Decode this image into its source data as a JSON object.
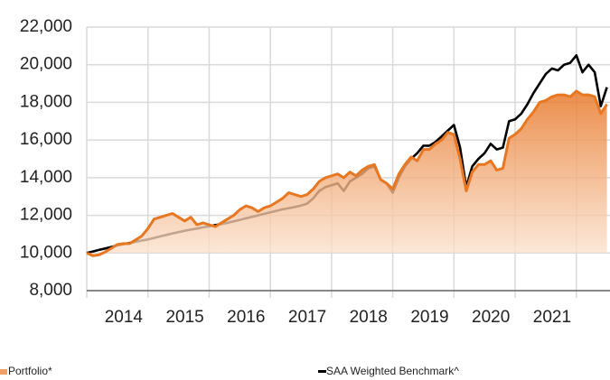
{
  "chart_data": {
    "type": "line",
    "x": [
      2014.0,
      2014.1,
      2014.2,
      2014.3,
      2014.4,
      2014.5,
      2014.6,
      2014.7,
      2014.8,
      2014.9,
      2015.0,
      2015.1,
      2015.2,
      2015.3,
      2015.4,
      2015.5,
      2015.6,
      2015.7,
      2015.8,
      2015.9,
      2016.0,
      2016.1,
      2016.2,
      2016.3,
      2016.4,
      2016.5,
      2016.6,
      2016.7,
      2016.8,
      2016.9,
      2017.0,
      2017.1,
      2017.2,
      2017.3,
      2017.4,
      2017.5,
      2017.6,
      2017.7,
      2017.8,
      2017.9,
      2018.0,
      2018.1,
      2018.2,
      2018.3,
      2018.4,
      2018.5,
      2018.6,
      2018.7,
      2018.8,
      2018.9,
      2019.0,
      2019.1,
      2019.2,
      2019.3,
      2019.4,
      2019.5,
      2019.6,
      2019.7,
      2019.8,
      2019.9,
      2020.0,
      2020.1,
      2020.2,
      2020.3,
      2020.4,
      2020.5,
      2020.6,
      2020.7,
      2020.8,
      2020.9,
      2021.0,
      2021.1,
      2021.2,
      2021.3,
      2021.4,
      2021.5,
      2021.6,
      2021.7,
      2021.8,
      2021.9,
      2022.0,
      2022.1,
      2022.2,
      2022.3,
      2022.4,
      2022.5
    ],
    "series": [
      {
        "name": "Portfolio*",
        "color": "#e87722",
        "area": true,
        "values": [
          10000,
          9850,
          9900,
          10050,
          10250,
          10450,
          10500,
          10500,
          10700,
          10900,
          11300,
          11800,
          11900,
          12000,
          12100,
          11900,
          11700,
          11900,
          11500,
          11600,
          11500,
          11400,
          11600,
          11800,
          12000,
          12300,
          12500,
          12400,
          12200,
          12400,
          12500,
          12700,
          12900,
          13200,
          13100,
          13000,
          13100,
          13400,
          13800,
          14000,
          14100,
          14200,
          14000,
          14300,
          14100,
          14400,
          14600,
          14700,
          13900,
          13700,
          13400,
          14200,
          14700,
          15100,
          14900,
          15500,
          15500,
          15800,
          16000,
          16400,
          16300,
          15000,
          13300,
          14300,
          14700,
          14700,
          14900,
          14400,
          14500,
          16100,
          16300,
          16600,
          17100,
          17500,
          18000,
          18100,
          18300,
          18400,
          18400,
          18300,
          18600,
          18400,
          18400,
          18300,
          17400,
          17900
        ]
      },
      {
        "name": "SAA Weighted Benchmark^",
        "color": "#000000",
        "area": false,
        "values": [
          10000,
          10080,
          10160,
          10240,
          10320,
          10400,
          10460,
          10530,
          10600,
          10660,
          10720,
          10800,
          10880,
          10960,
          11040,
          11110,
          11180,
          11240,
          11300,
          11360,
          11420,
          11480,
          11540,
          11600,
          11680,
          11760,
          11840,
          11920,
          12000,
          12080,
          12160,
          12240,
          12320,
          12380,
          12440,
          12520,
          12620,
          12900,
          13300,
          13500,
          13600,
          13700,
          13300,
          13800,
          14000,
          14200,
          14500,
          14600,
          13900,
          13700,
          13200,
          14000,
          14600,
          15000,
          15300,
          15700,
          15700,
          15900,
          16200,
          16500,
          16800,
          15600,
          13500,
          14600,
          15000,
          15300,
          15800,
          15500,
          15600,
          17000,
          17100,
          17400,
          17900,
          18500,
          19000,
          19500,
          19800,
          19700,
          20000,
          20100,
          20500,
          19600,
          20000,
          19600,
          17800,
          18800
        ]
      }
    ],
    "xlim": [
      2014,
      2022.55
    ],
    "xticks": [
      {
        "value": 2014.5,
        "label": "2014"
      },
      {
        "value": 2015.5,
        "label": "2015"
      },
      {
        "value": 2016.5,
        "label": "2016"
      },
      {
        "value": 2017.5,
        "label": "2017"
      },
      {
        "value": 2018.5,
        "label": "2018"
      },
      {
        "value": 2019.5,
        "label": "2019"
      },
      {
        "value": 2020.5,
        "label": "2020"
      },
      {
        "value": 2021.5,
        "label": "2021"
      }
    ],
    "xgrid": [
      2014,
      2015,
      2016,
      2017,
      2018,
      2019,
      2020,
      2021,
      2022
    ],
    "ylim": [
      8000,
      22000
    ],
    "yticks": [
      {
        "value": 8000,
        "label": "8,000"
      },
      {
        "value": 10000,
        "label": "10,000"
      },
      {
        "value": 12000,
        "label": "12,000"
      },
      {
        "value": 14000,
        "label": "14,000"
      },
      {
        "value": 16000,
        "label": "16,000"
      },
      {
        "value": 18000,
        "label": "18,000"
      },
      {
        "value": 20000,
        "label": "20,000"
      },
      {
        "value": 22000,
        "label": "22,000"
      }
    ],
    "baseline": 10000,
    "grid": true,
    "legend": "bottom"
  }
}
